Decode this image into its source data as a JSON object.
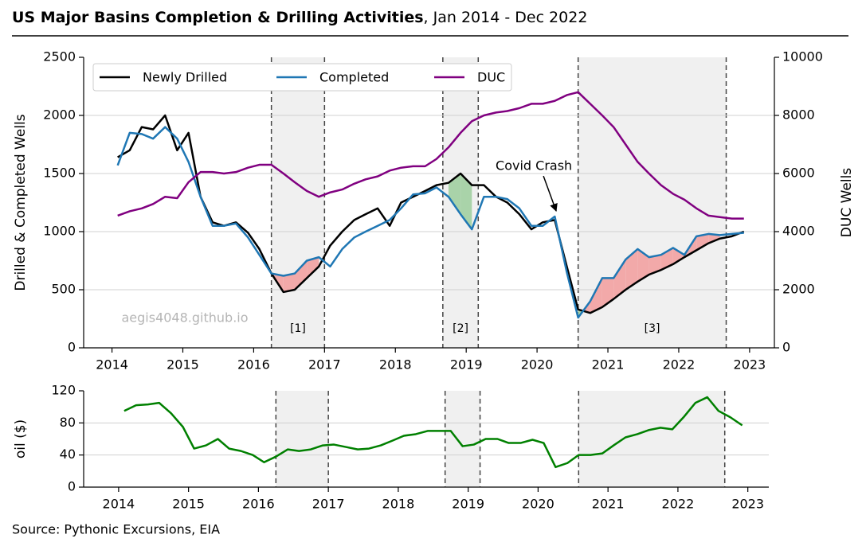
{
  "title": "US Major Basins Completion & Drilling Activities",
  "subtitle": ",  Jan 2014 - Dec 2022",
  "source": "Source: Pythonic Excursions, EIA",
  "chart_data": [
    {
      "type": "line",
      "x": [
        2014.08,
        2014.25,
        2014.42,
        2014.58,
        2014.75,
        2014.92,
        2015.08,
        2015.25,
        2015.42,
        2015.58,
        2015.75,
        2015.92,
        2016.08,
        2016.25,
        2016.42,
        2016.58,
        2016.75,
        2016.92,
        2017.08,
        2017.25,
        2017.42,
        2017.58,
        2017.75,
        2017.92,
        2018.08,
        2018.25,
        2018.42,
        2018.58,
        2018.75,
        2018.92,
        2019.08,
        2019.25,
        2019.42,
        2019.58,
        2019.75,
        2019.92,
        2020.08,
        2020.25,
        2020.42,
        2020.58,
        2020.75,
        2020.92,
        2021.08,
        2021.25,
        2021.42,
        2021.58,
        2021.75,
        2021.92,
        2022.08,
        2022.25,
        2022.42,
        2022.58,
        2022.75,
        2022.92
      ],
      "series": [
        {
          "name": "Newly Drilled",
          "color": "#000000",
          "values": [
            1640,
            1700,
            1900,
            1880,
            2000,
            1700,
            1850,
            1300,
            1080,
            1050,
            1080,
            990,
            850,
            640,
            480,
            500,
            600,
            700,
            880,
            1000,
            1100,
            1150,
            1200,
            1050,
            1250,
            1300,
            1350,
            1400,
            1420,
            1500,
            1400,
            1400,
            1300,
            1250,
            1150,
            1020,
            1080,
            1100,
            700,
            330,
            300,
            350,
            420,
            500,
            570,
            630,
            670,
            720,
            780,
            840,
            900,
            940,
            960,
            1000
          ]
        },
        {
          "name": "Completed",
          "color": "#1f77b4",
          "values": [
            1570,
            1850,
            1840,
            1800,
            1900,
            1800,
            1600,
            1300,
            1050,
            1050,
            1070,
            950,
            800,
            640,
            620,
            640,
            750,
            780,
            700,
            850,
            950,
            1000,
            1050,
            1100,
            1200,
            1320,
            1330,
            1380,
            1300,
            1150,
            1020,
            1300,
            1300,
            1280,
            1200,
            1050,
            1050,
            1130,
            650,
            260,
            400,
            600,
            600,
            760,
            850,
            780,
            800,
            860,
            800,
            960,
            980,
            970,
            980,
            990
          ]
        },
        {
          "name": "DUC",
          "color": "#800080",
          "axis": "y2",
          "values": [
            4550,
            4700,
            4800,
            4950,
            5200,
            5150,
            5700,
            6050,
            6050,
            6000,
            6050,
            6200,
            6300,
            6300,
            6000,
            5700,
            5400,
            5200,
            5350,
            5450,
            5650,
            5800,
            5900,
            6100,
            6200,
            6250,
            6250,
            6500,
            6900,
            7400,
            7800,
            8000,
            8100,
            8150,
            8250,
            8400,
            8400,
            8500,
            8700,
            8800,
            8400,
            8000,
            7600,
            7000,
            6400,
            6000,
            5600,
            5300,
            5100,
            4800,
            4550,
            4500,
            4450,
            4450
          ]
        }
      ],
      "xlim": [
        2013.6,
        2023.35
      ],
      "xticks": [
        2014,
        2015,
        2016,
        2017,
        2018,
        2019,
        2020,
        2021,
        2022,
        2023
      ],
      "ylim": [
        0,
        2500
      ],
      "yticks": [
        0,
        500,
        1000,
        1500,
        2000,
        2500
      ],
      "y2lim": [
        0,
        10000
      ],
      "y2ticks": [
        0,
        2000,
        4000,
        6000,
        8000,
        10000
      ],
      "ylabel": "Drilled & Completed Wells",
      "y2label": "DUC Wells",
      "grid": true,
      "legend": "upper left",
      "regions": [
        {
          "start": 2016.25,
          "end": 2017.0,
          "label": "[1]"
        },
        {
          "start": 2018.67,
          "end": 2019.17,
          "label": "[2]"
        },
        {
          "start": 2020.58,
          "end": 2022.67,
          "label": "[3]"
        }
      ],
      "fill_colors": {
        "completed_above": "#f2a9a9",
        "drilled_above": "#a9d3a9"
      },
      "annotation": {
        "text": "Covid Crash",
        "x": 2020.27,
        "y": 1150
      },
      "watermark": "aegis4048.github.io"
    },
    {
      "type": "line",
      "series": [
        {
          "name": "oil",
          "color": "#008000",
          "values": [
            95,
            102,
            103,
            105,
            92,
            75,
            48,
            52,
            60,
            48,
            45,
            40,
            31,
            38,
            47,
            45,
            47,
            52,
            53,
            50,
            47,
            48,
            52,
            58,
            64,
            66,
            70,
            70,
            70,
            51,
            53,
            60,
            60,
            55,
            55,
            59,
            55,
            25,
            30,
            40,
            40,
            42,
            52,
            62,
            66,
            71,
            74,
            72,
            87,
            105,
            112,
            95,
            87,
            77
          ]
        }
      ],
      "xlim": [
        2013.5,
        2023.3
      ],
      "xticks": [
        2014,
        2015,
        2016,
        2017,
        2018,
        2019,
        2020,
        2021,
        2022,
        2023
      ],
      "ylim": [
        0,
        120
      ],
      "yticks": [
        0,
        40,
        80,
        120
      ],
      "ylabel": "oil ($)",
      "grid": true,
      "regions": [
        {
          "start": 2016.25,
          "end": 2017.0
        },
        {
          "start": 2018.67,
          "end": 2019.17
        },
        {
          "start": 2020.58,
          "end": 2022.67
        }
      ]
    }
  ]
}
